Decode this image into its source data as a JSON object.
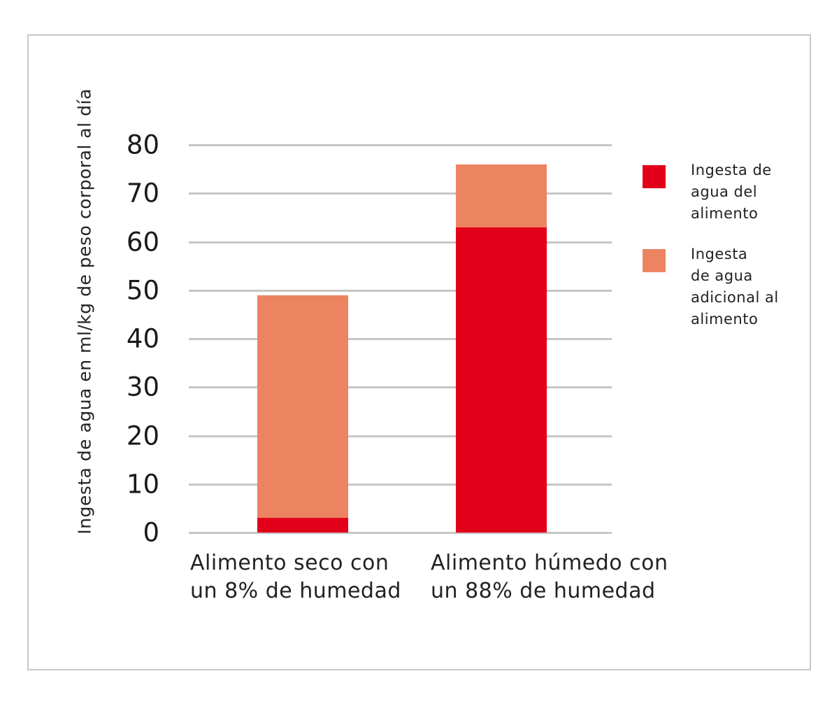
{
  "chart_data": {
    "type": "bar",
    "stacked": true,
    "title": "",
    "xlabel": "",
    "ylabel": "Ingesta de agua en ml/kg de peso corporal al día",
    "ylim": [
      0,
      80
    ],
    "yticks": [
      0,
      10,
      20,
      30,
      40,
      50,
      60,
      70,
      80
    ],
    "grid": true,
    "legend_position": "right",
    "categories": [
      "Alimento seco con un 8% de humedad",
      "Alimento húmedo con un 88% de humedad"
    ],
    "category_lines": [
      [
        "Alimento seco con",
        "un 8% de humedad"
      ],
      [
        "Alimento húmedo con",
        "un 88% de humedad"
      ]
    ],
    "series": [
      {
        "name": "Ingesta de agua del alimento",
        "color": "#e2001a",
        "values": [
          3,
          63
        ]
      },
      {
        "name": "Ingesta de agua adicional al alimento",
        "color": "#ec8461",
        "values": [
          46,
          13
        ]
      }
    ],
    "totals": [
      49,
      76
    ]
  },
  "legend": {
    "items": [
      {
        "lines": [
          "Ingesta de",
          "agua del",
          "alimento"
        ],
        "color": "#e2001a"
      },
      {
        "lines": [
          "Ingesta",
          "de agua",
          "adicional al",
          "alimento"
        ],
        "color": "#ec8461"
      }
    ]
  },
  "colors": {
    "grid": "#c6c6c6",
    "border": "#c8c8c8"
  }
}
